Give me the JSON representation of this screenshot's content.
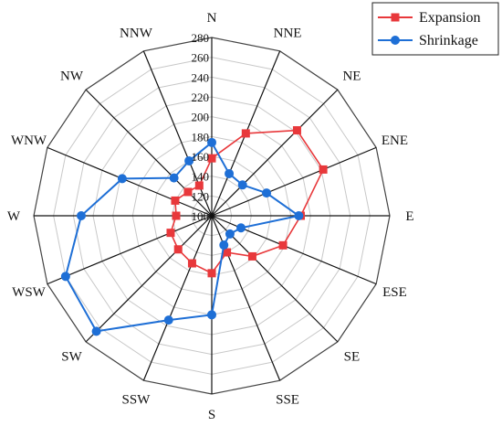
{
  "chart_data": {
    "type": "radar",
    "directions": [
      "N",
      "NNE",
      "NE",
      "ENE",
      "E",
      "ESE",
      "SE",
      "SSE",
      "S",
      "SSW",
      "SW",
      "WSW",
      "W",
      "WNW",
      "NW",
      "NNW"
    ],
    "radial_range": [
      100,
      280
    ],
    "radial_ticks": [
      100,
      120,
      140,
      160,
      180,
      200,
      220,
      240,
      260,
      280
    ],
    "tick_labels": [
      "100",
      "120",
      "140",
      "160",
      "180",
      "200",
      "220",
      "240",
      "260",
      "280"
    ],
    "grid": true,
    "legend_position": "top-right",
    "series": [
      {
        "name": "Expansion",
        "color": "#e8383b",
        "marker": "square",
        "values": [
          158,
          190,
          222,
          222,
          190,
          178,
          158,
          140,
          158,
          152,
          148,
          145,
          136,
          140,
          134,
          133
        ]
      },
      {
        "name": "Shrinkage",
        "color": "#1e6fd6",
        "marker": "circle",
        "values": [
          174,
          146,
          144,
          160,
          188,
          132,
          126,
          132,
          200,
          214,
          265,
          260,
          232,
          198,
          154,
          160
        ]
      }
    ]
  }
}
